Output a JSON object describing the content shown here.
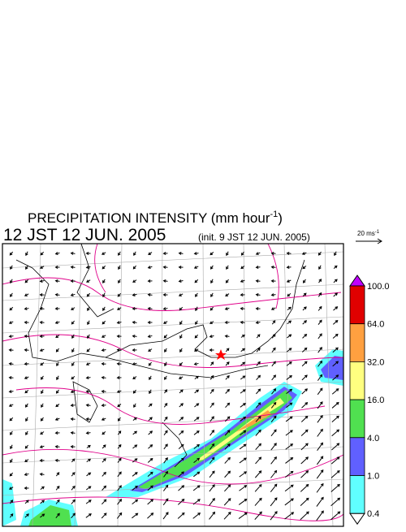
{
  "header": {
    "title_main": "PRECIPITATION INTENSITY (mm hour",
    "title_sup": "-1",
    "title_end": ")",
    "valid_time": "12 JST 12 JUN. 2005",
    "init_time": "(init. 9 JST 12 JUN. 2005)",
    "wind_scale": "20 ms",
    "wind_scale_sup": "-1"
  },
  "colorbar": {
    "levels": [
      {
        "label": "100.0",
        "color": "#e00000"
      },
      {
        "label": "64.0",
        "color": "#ffa040"
      },
      {
        "label": "32.0",
        "color": "#ffff80"
      },
      {
        "label": "16.0",
        "color": "#50e050"
      },
      {
        "label": "4.0",
        "color": "#6060ff"
      },
      {
        "label": "1.0",
        "color": "#60ffff"
      },
      {
        "label": "0.4",
        "color": "#ffffff"
      }
    ],
    "over_color": "#c000ff"
  }
}
